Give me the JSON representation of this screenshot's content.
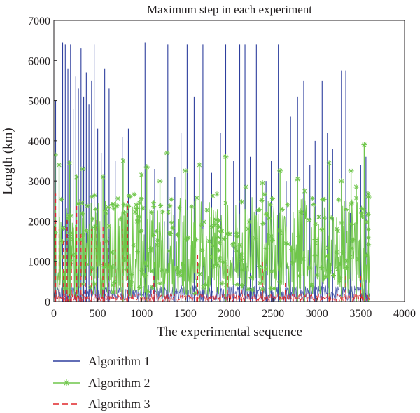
{
  "chart_data": {
    "type": "line",
    "title": "Maximum step in each experiment",
    "xlabel": "The experimental sequence",
    "ylabel": "Length (km)",
    "xlim": [
      0,
      4000
    ],
    "ylim": [
      0,
      7000
    ],
    "xticks": [
      "0",
      "500",
      "1000",
      "1500",
      "2000",
      "2500",
      "3000",
      "3500",
      "4000"
    ],
    "yticks": [
      "0",
      "1000",
      "2000",
      "3000",
      "4000",
      "5000",
      "6000",
      "7000"
    ],
    "grid": false,
    "legend_position": "below",
    "n_experiments": 3600,
    "series": [
      {
        "name": "Algorithm 1",
        "color": "#2e3f9e",
        "style": "solid",
        "baseline_range": [
          0,
          400
        ],
        "spikes": [
          {
            "x": 20,
            "y": 5000
          },
          {
            "x": 60,
            "y": 3400
          },
          {
            "x": 100,
            "y": 6450
          },
          {
            "x": 130,
            "y": 6400
          },
          {
            "x": 160,
            "y": 5800
          },
          {
            "x": 190,
            "y": 6400
          },
          {
            "x": 220,
            "y": 4800
          },
          {
            "x": 250,
            "y": 5600
          },
          {
            "x": 280,
            "y": 5300
          },
          {
            "x": 310,
            "y": 6300
          },
          {
            "x": 340,
            "y": 5100
          },
          {
            "x": 370,
            "y": 5700
          },
          {
            "x": 400,
            "y": 4900
          },
          {
            "x": 430,
            "y": 5500
          },
          {
            "x": 460,
            "y": 6400
          },
          {
            "x": 500,
            "y": 4300
          },
          {
            "x": 540,
            "y": 3700
          },
          {
            "x": 580,
            "y": 5800
          },
          {
            "x": 630,
            "y": 5300
          },
          {
            "x": 700,
            "y": 3500
          },
          {
            "x": 780,
            "y": 4100
          },
          {
            "x": 850,
            "y": 4300
          },
          {
            "x": 1040,
            "y": 6450
          },
          {
            "x": 1150,
            "y": 3300
          },
          {
            "x": 1260,
            "y": 2000
          },
          {
            "x": 1300,
            "y": 6400
          },
          {
            "x": 1380,
            "y": 3100
          },
          {
            "x": 1450,
            "y": 4200
          },
          {
            "x": 1520,
            "y": 6400
          },
          {
            "x": 1600,
            "y": 5100
          },
          {
            "x": 1700,
            "y": 6400
          },
          {
            "x": 1800,
            "y": 3200
          },
          {
            "x": 1900,
            "y": 4200
          },
          {
            "x": 1960,
            "y": 6400
          },
          {
            "x": 2050,
            "y": 3500
          },
          {
            "x": 2120,
            "y": 6400
          },
          {
            "x": 2180,
            "y": 6400
          },
          {
            "x": 2240,
            "y": 3600
          },
          {
            "x": 2310,
            "y": 6400
          },
          {
            "x": 2420,
            "y": 3000
          },
          {
            "x": 2480,
            "y": 3500
          },
          {
            "x": 2560,
            "y": 6400
          },
          {
            "x": 2650,
            "y": 3000
          },
          {
            "x": 2700,
            "y": 4600
          },
          {
            "x": 2780,
            "y": 5100
          },
          {
            "x": 2850,
            "y": 5500
          },
          {
            "x": 2920,
            "y": 3400
          },
          {
            "x": 2980,
            "y": 4000
          },
          {
            "x": 3060,
            "y": 5500
          },
          {
            "x": 3120,
            "y": 4200
          },
          {
            "x": 3180,
            "y": 3800
          },
          {
            "x": 3280,
            "y": 5750
          },
          {
            "x": 3330,
            "y": 5750
          },
          {
            "x": 3380,
            "y": 2200
          },
          {
            "x": 3450,
            "y": 2400
          },
          {
            "x": 3500,
            "y": 3400
          },
          {
            "x": 3560,
            "y": 3600
          }
        ]
      },
      {
        "name": "Algorithm 2",
        "color": "#6fc64a",
        "style": "solid",
        "marker": "asterisk",
        "baseline_range": [
          0,
          2600
        ],
        "spikes": [
          {
            "x": 15,
            "y": 3650
          },
          {
            "x": 60,
            "y": 3400
          },
          {
            "x": 180,
            "y": 3450
          },
          {
            "x": 260,
            "y": 3100
          },
          {
            "x": 330,
            "y": 3300
          },
          {
            "x": 560,
            "y": 3100
          },
          {
            "x": 790,
            "y": 3500
          },
          {
            "x": 1000,
            "y": 3150
          },
          {
            "x": 1060,
            "y": 3350
          },
          {
            "x": 1210,
            "y": 3000
          },
          {
            "x": 1290,
            "y": 3700
          },
          {
            "x": 1500,
            "y": 3250
          },
          {
            "x": 1660,
            "y": 3400
          },
          {
            "x": 1960,
            "y": 3600
          },
          {
            "x": 2190,
            "y": 2850
          },
          {
            "x": 2380,
            "y": 2950
          },
          {
            "x": 2580,
            "y": 3250
          },
          {
            "x": 2780,
            "y": 3050
          },
          {
            "x": 2860,
            "y": 2750
          },
          {
            "x": 3140,
            "y": 3450
          },
          {
            "x": 3280,
            "y": 3000
          },
          {
            "x": 3390,
            "y": 3250
          },
          {
            "x": 3450,
            "y": 2850
          },
          {
            "x": 3540,
            "y": 3900
          },
          {
            "x": 3590,
            "y": 2600
          }
        ]
      },
      {
        "name": "Algorithm 3",
        "color": "#e0262a",
        "style": "dashed",
        "baseline_range": [
          0,
          200
        ],
        "spikes": [
          {
            "x": 20,
            "y": 2700
          },
          {
            "x": 60,
            "y": 1800
          },
          {
            "x": 110,
            "y": 1500
          },
          {
            "x": 150,
            "y": 2100
          },
          {
            "x": 200,
            "y": 1200
          },
          {
            "x": 260,
            "y": 2400
          },
          {
            "x": 310,
            "y": 1700
          },
          {
            "x": 360,
            "y": 1400
          },
          {
            "x": 430,
            "y": 1800
          },
          {
            "x": 490,
            "y": 2100
          },
          {
            "x": 560,
            "y": 1900
          },
          {
            "x": 620,
            "y": 1600
          },
          {
            "x": 700,
            "y": 1300
          },
          {
            "x": 780,
            "y": 1800
          },
          {
            "x": 840,
            "y": 2500
          },
          {
            "x": 1140,
            "y": 700
          },
          {
            "x": 1640,
            "y": 1200
          },
          {
            "x": 1980,
            "y": 900
          },
          {
            "x": 2140,
            "y": 300
          },
          {
            "x": 2380,
            "y": 1000
          },
          {
            "x": 2640,
            "y": 500
          },
          {
            "x": 2890,
            "y": 200
          },
          {
            "x": 3140,
            "y": 200
          },
          {
            "x": 3330,
            "y": 700
          },
          {
            "x": 3500,
            "y": 700
          }
        ]
      }
    ]
  }
}
